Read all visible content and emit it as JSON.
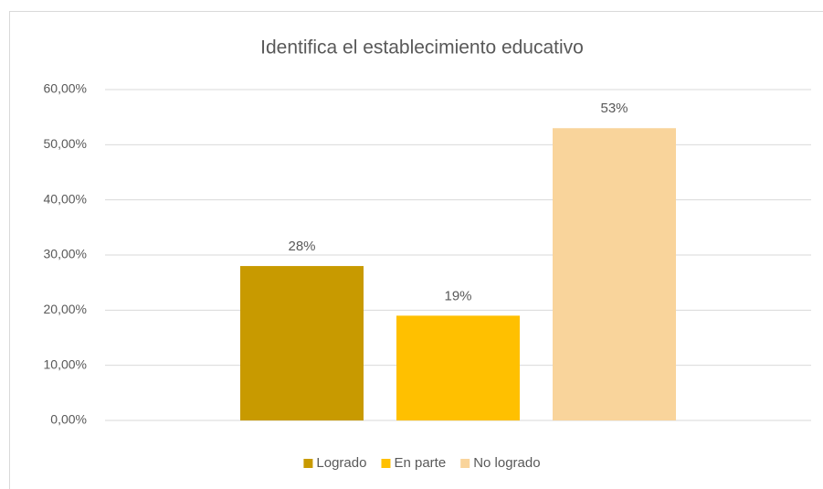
{
  "chart_data": {
    "type": "bar",
    "title": "Identifica el establecimiento educativo",
    "categories": [
      null
    ],
    "series": [
      {
        "name": "Logrado",
        "color": "#c89a00",
        "values": [
          28
        ],
        "value_labels": [
          "28%"
        ]
      },
      {
        "name": "En parte",
        "color": "#ffc000",
        "values": [
          19
        ],
        "value_labels": [
          "19%"
        ]
      },
      {
        "name": "No logrado",
        "color": "#f9d49b",
        "values": [
          53
        ],
        "value_labels": [
          "53%"
        ]
      }
    ],
    "ylim": [
      0,
      60
    ],
    "yticks": [
      {
        "value": 0,
        "label": "0,00%"
      },
      {
        "value": 10,
        "label": "10,00%"
      },
      {
        "value": 20,
        "label": "20,00%"
      },
      {
        "value": 30,
        "label": "30,00%"
      },
      {
        "value": 40,
        "label": "40,00%"
      },
      {
        "value": 50,
        "label": "50,00%"
      },
      {
        "value": 60,
        "label": "60,00%"
      }
    ],
    "grid": true,
    "legend": "bottom"
  }
}
